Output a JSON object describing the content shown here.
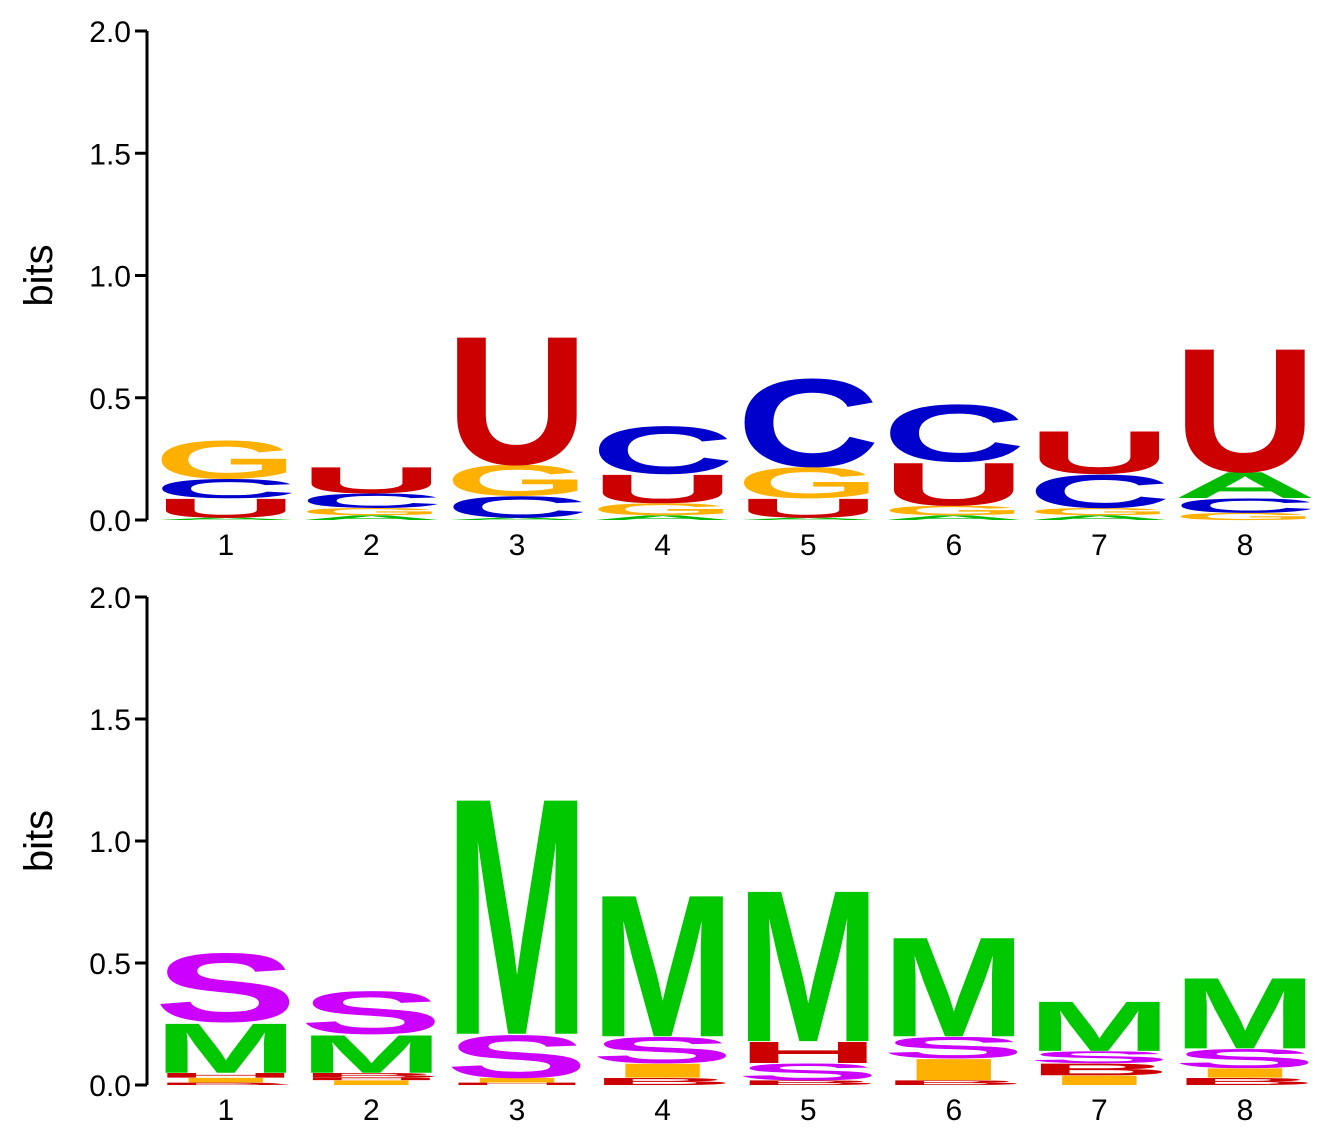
{
  "colors": {
    "A": "#00bb00",
    "C": "#0000cc",
    "G": "#ffb000",
    "U": "#cc0000",
    "M": "#00c800",
    "S": "#cc00ff",
    "H": "#cc0000",
    "I": "#ffb000",
    "B": "#cc0000"
  },
  "chart_data": [
    {
      "type": "sequence-logo",
      "ylabel": "bits",
      "ylim": [
        0,
        2
      ],
      "yticks": [
        "0.0",
        "0.5",
        "1.0",
        "1.5",
        "2.0"
      ],
      "categories": [
        "1",
        "2",
        "3",
        "4",
        "5",
        "6",
        "7",
        "8"
      ],
      "positions": [
        [
          {
            "letter": "A",
            "value": 0.01
          },
          {
            "letter": "U",
            "value": 0.08
          },
          {
            "letter": "C",
            "value": 0.08
          },
          {
            "letter": "G",
            "value": 0.16
          }
        ],
        [
          {
            "letter": "A",
            "value": 0.02
          },
          {
            "letter": "G",
            "value": 0.03
          },
          {
            "letter": "C",
            "value": 0.06
          },
          {
            "letter": "U",
            "value": 0.11
          }
        ],
        [
          {
            "letter": "A",
            "value": 0.01
          },
          {
            "letter": "C",
            "value": 0.09
          },
          {
            "letter": "G",
            "value": 0.13
          },
          {
            "letter": "U",
            "value": 0.54
          }
        ],
        [
          {
            "letter": "A",
            "value": 0.02
          },
          {
            "letter": "G",
            "value": 0.05
          },
          {
            "letter": "U",
            "value": 0.12
          },
          {
            "letter": "C",
            "value": 0.2
          }
        ],
        [
          {
            "letter": "A",
            "value": 0.01
          },
          {
            "letter": "U",
            "value": 0.08
          },
          {
            "letter": "G",
            "value": 0.13
          },
          {
            "letter": "C",
            "value": 0.37
          }
        ],
        [
          {
            "letter": "A",
            "value": 0.02
          },
          {
            "letter": "G",
            "value": 0.04
          },
          {
            "letter": "U",
            "value": 0.18
          },
          {
            "letter": "C",
            "value": 0.24
          }
        ],
        [
          {
            "letter": "A",
            "value": 0.02
          },
          {
            "letter": "G",
            "value": 0.03
          },
          {
            "letter": "C",
            "value": 0.14
          },
          {
            "letter": "U",
            "value": 0.18
          }
        ],
        [
          {
            "letter": "G",
            "value": 0.03
          },
          {
            "letter": "C",
            "value": 0.06
          },
          {
            "letter": "A",
            "value": 0.11
          },
          {
            "letter": "U",
            "value": 0.52
          }
        ]
      ]
    },
    {
      "type": "sequence-logo",
      "ylabel": "bits",
      "ylim": [
        0,
        2
      ],
      "yticks": [
        "0.0",
        "0.5",
        "1.0",
        "1.5",
        "2.0"
      ],
      "categories": [
        "1",
        "2",
        "3",
        "4",
        "5",
        "6",
        "7",
        "8"
      ],
      "positions": [
        [
          {
            "letter": "B",
            "value": 0.01
          },
          {
            "letter": "I",
            "value": 0.02
          },
          {
            "letter": "H",
            "value": 0.02
          },
          {
            "letter": "M",
            "value": 0.21
          },
          {
            "letter": "S",
            "value": 0.29
          }
        ],
        [
          {
            "letter": "I",
            "value": 0.02
          },
          {
            "letter": "H",
            "value": 0.01
          },
          {
            "letter": "B",
            "value": 0.02
          },
          {
            "letter": "M",
            "value": 0.16
          },
          {
            "letter": "S",
            "value": 0.18
          }
        ],
        [
          {
            "letter": "H",
            "value": 0.01
          },
          {
            "letter": "I",
            "value": 0.02
          },
          {
            "letter": "S",
            "value": 0.18
          },
          {
            "letter": "M",
            "value": 1.0
          }
        ],
        [
          {
            "letter": "B",
            "value": 0.03
          },
          {
            "letter": "I",
            "value": 0.06
          },
          {
            "letter": "S",
            "value": 0.11
          },
          {
            "letter": "M",
            "value": 0.6
          }
        ],
        [
          {
            "letter": "B",
            "value": 0.02
          },
          {
            "letter": "S",
            "value": 0.07
          },
          {
            "letter": "H",
            "value": 0.09
          },
          {
            "letter": "M",
            "value": 0.64
          }
        ],
        [
          {
            "letter": "B",
            "value": 0.02
          },
          {
            "letter": "I",
            "value": 0.09
          },
          {
            "letter": "S",
            "value": 0.09
          },
          {
            "letter": "M",
            "value": 0.42
          }
        ],
        [
          {
            "letter": "I",
            "value": 0.04
          },
          {
            "letter": "B",
            "value": 0.05
          },
          {
            "letter": "S",
            "value": 0.05
          },
          {
            "letter": "M",
            "value": 0.21
          }
        ],
        [
          {
            "letter": "B",
            "value": 0.03
          },
          {
            "letter": "I",
            "value": 0.04
          },
          {
            "letter": "S",
            "value": 0.08
          },
          {
            "letter": "M",
            "value": 0.3
          }
        ]
      ]
    }
  ]
}
